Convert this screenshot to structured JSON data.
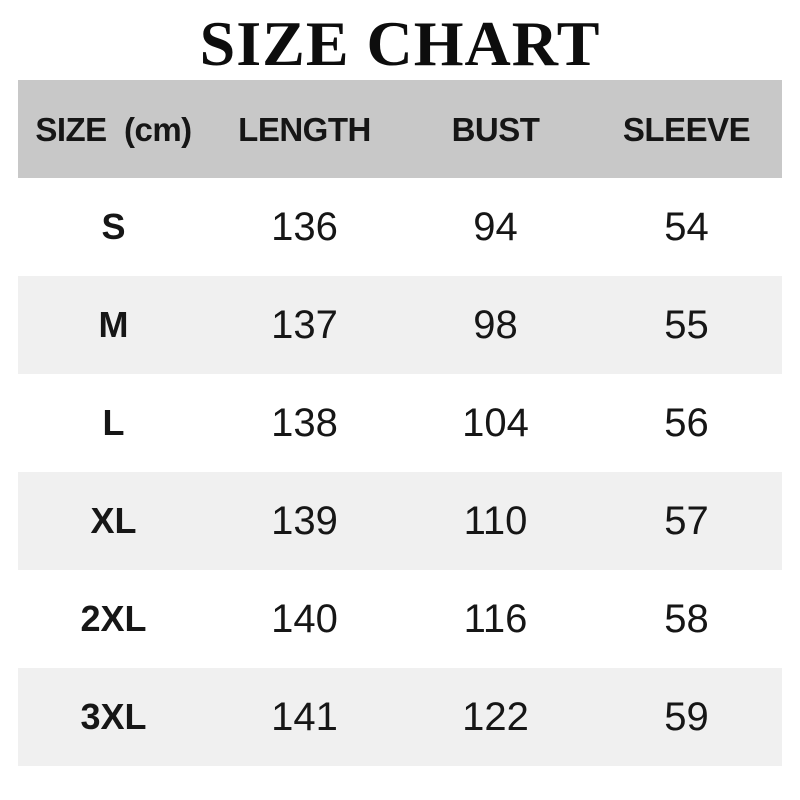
{
  "title": "SIZE CHART",
  "table": {
    "headers": [
      "SIZE  (cm)",
      "LENGTH",
      "BUST",
      "SLEEVE"
    ],
    "rows": [
      {
        "size": "S",
        "length": "136",
        "bust": "94",
        "sleeve": "54"
      },
      {
        "size": "M",
        "length": "137",
        "bust": "98",
        "sleeve": "55"
      },
      {
        "size": "L",
        "length": "138",
        "bust": "104",
        "sleeve": "56"
      },
      {
        "size": "XL",
        "length": "139",
        "bust": "110",
        "sleeve": "57"
      },
      {
        "size": "2XL",
        "length": "140",
        "bust": "116",
        "sleeve": "58"
      },
      {
        "size": "3XL",
        "length": "141",
        "bust": "122",
        "sleeve": "59"
      }
    ]
  },
  "colors": {
    "header_bg": "#c8c8c8",
    "alt_row_bg": "#f0f0f0",
    "text": "#161616",
    "background": "#ffffff"
  },
  "chart_data": {
    "type": "table",
    "title": "SIZE CHART",
    "unit": "cm",
    "columns": [
      "SIZE (cm)",
      "LENGTH",
      "BUST",
      "SLEEVE"
    ],
    "rows": [
      [
        "S",
        136,
        94,
        54
      ],
      [
        "M",
        137,
        98,
        55
      ],
      [
        "L",
        138,
        104,
        56
      ],
      [
        "XL",
        139,
        110,
        57
      ],
      [
        "2XL",
        140,
        116,
        58
      ],
      [
        "3XL",
        141,
        122,
        59
      ]
    ]
  }
}
